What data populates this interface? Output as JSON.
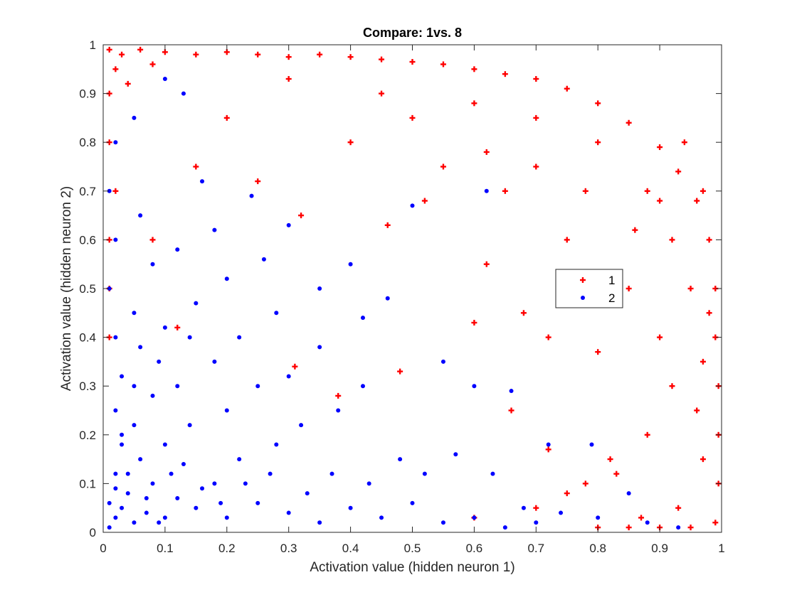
{
  "chart_data": {
    "type": "scatter",
    "title": "Compare: 1vs. 8",
    "xlabel": "Activation value (hidden neuron 1)",
    "ylabel": "Activation value (hidden neuron 2)",
    "xlim": [
      0,
      1
    ],
    "ylim": [
      0,
      1
    ],
    "xticks": [
      "0",
      "0.1",
      "0.2",
      "0.3",
      "0.4",
      "0.5",
      "0.6",
      "0.7",
      "0.8",
      "0.9",
      "1"
    ],
    "yticks": [
      "0",
      "0.1",
      "0.2",
      "0.3",
      "0.4",
      "0.5",
      "0.6",
      "0.7",
      "0.8",
      "0.9",
      "1"
    ],
    "grid": false,
    "legend_position": "center-right",
    "series": [
      {
        "name": "1",
        "marker": "plus",
        "color": "#ff0000",
        "points": [
          [
            0.01,
            0.99
          ],
          [
            0.03,
            0.98
          ],
          [
            0.06,
            0.99
          ],
          [
            0.1,
            0.985
          ],
          [
            0.15,
            0.98
          ],
          [
            0.2,
            0.985
          ],
          [
            0.25,
            0.98
          ],
          [
            0.3,
            0.975
          ],
          [
            0.35,
            0.98
          ],
          [
            0.4,
            0.975
          ],
          [
            0.45,
            0.97
          ],
          [
            0.5,
            0.965
          ],
          [
            0.55,
            0.96
          ],
          [
            0.6,
            0.95
          ],
          [
            0.65,
            0.94
          ],
          [
            0.7,
            0.93
          ],
          [
            0.75,
            0.91
          ],
          [
            0.8,
            0.88
          ],
          [
            0.85,
            0.84
          ],
          [
            0.9,
            0.79
          ],
          [
            0.93,
            0.74
          ],
          [
            0.96,
            0.68
          ],
          [
            0.98,
            0.6
          ],
          [
            0.99,
            0.5
          ],
          [
            0.99,
            0.4
          ],
          [
            0.995,
            0.3
          ],
          [
            0.995,
            0.2
          ],
          [
            0.995,
            0.1
          ],
          [
            0.99,
            0.02
          ],
          [
            0.95,
            0.01
          ],
          [
            0.9,
            0.01
          ],
          [
            0.85,
            0.01
          ],
          [
            0.8,
            0.01
          ],
          [
            0.01,
            0.9
          ],
          [
            0.01,
            0.8
          ],
          [
            0.02,
            0.7
          ],
          [
            0.01,
            0.6
          ],
          [
            0.01,
            0.5
          ],
          [
            0.01,
            0.4
          ],
          [
            0.02,
            0.95
          ],
          [
            0.04,
            0.92
          ],
          [
            0.08,
            0.96
          ],
          [
            0.3,
            0.93
          ],
          [
            0.45,
            0.9
          ],
          [
            0.6,
            0.88
          ],
          [
            0.7,
            0.85
          ],
          [
            0.8,
            0.8
          ],
          [
            0.88,
            0.7
          ],
          [
            0.92,
            0.6
          ],
          [
            0.95,
            0.5
          ],
          [
            0.5,
            0.85
          ],
          [
            0.4,
            0.8
          ],
          [
            0.55,
            0.75
          ],
          [
            0.65,
            0.7
          ],
          [
            0.75,
            0.6
          ],
          [
            0.85,
            0.5
          ],
          [
            0.9,
            0.4
          ],
          [
            0.92,
            0.3
          ],
          [
            0.88,
            0.2
          ],
          [
            0.82,
            0.15
          ],
          [
            0.78,
            0.1
          ],
          [
            0.7,
            0.05
          ],
          [
            0.6,
            0.03
          ],
          [
            0.12,
            0.42
          ],
          [
            0.08,
            0.6
          ],
          [
            0.15,
            0.75
          ],
          [
            0.2,
            0.85
          ],
          [
            0.25,
            0.72
          ],
          [
            0.32,
            0.65
          ],
          [
            0.46,
            0.63
          ],
          [
            0.52,
            0.68
          ],
          [
            0.62,
            0.55
          ],
          [
            0.68,
            0.45
          ],
          [
            0.72,
            0.4
          ],
          [
            0.8,
            0.37
          ],
          [
            0.6,
            0.43
          ],
          [
            0.48,
            0.33
          ],
          [
            0.38,
            0.28
          ],
          [
            0.31,
            0.34
          ],
          [
            0.62,
            0.78
          ],
          [
            0.7,
            0.75
          ],
          [
            0.78,
            0.7
          ],
          [
            0.86,
            0.62
          ],
          [
            0.9,
            0.68
          ],
          [
            0.94,
            0.8
          ],
          [
            0.97,
            0.7
          ],
          [
            0.98,
            0.45
          ],
          [
            0.97,
            0.35
          ],
          [
            0.96,
            0.25
          ],
          [
            0.97,
            0.15
          ],
          [
            0.93,
            0.05
          ],
          [
            0.87,
            0.03
          ],
          [
            0.75,
            0.08
          ],
          [
            0.83,
            0.12
          ],
          [
            0.72,
            0.17
          ],
          [
            0.66,
            0.25
          ]
        ]
      },
      {
        "name": "2",
        "marker": "dot",
        "color": "#0000ff",
        "points": [
          [
            0.01,
            0.01
          ],
          [
            0.02,
            0.03
          ],
          [
            0.03,
            0.05
          ],
          [
            0.05,
            0.02
          ],
          [
            0.04,
            0.08
          ],
          [
            0.07,
            0.04
          ],
          [
            0.02,
            0.12
          ],
          [
            0.08,
            0.1
          ],
          [
            0.1,
            0.03
          ],
          [
            0.12,
            0.07
          ],
          [
            0.03,
            0.18
          ],
          [
            0.06,
            0.15
          ],
          [
            0.15,
            0.05
          ],
          [
            0.18,
            0.1
          ],
          [
            0.02,
            0.25
          ],
          [
            0.05,
            0.22
          ],
          [
            0.1,
            0.18
          ],
          [
            0.2,
            0.03
          ],
          [
            0.25,
            0.06
          ],
          [
            0.03,
            0.32
          ],
          [
            0.08,
            0.28
          ],
          [
            0.14,
            0.22
          ],
          [
            0.22,
            0.15
          ],
          [
            0.3,
            0.04
          ],
          [
            0.35,
            0.02
          ],
          [
            0.02,
            0.4
          ],
          [
            0.06,
            0.38
          ],
          [
            0.12,
            0.3
          ],
          [
            0.2,
            0.25
          ],
          [
            0.28,
            0.18
          ],
          [
            0.4,
            0.05
          ],
          [
            0.45,
            0.03
          ],
          [
            0.01,
            0.5
          ],
          [
            0.05,
            0.45
          ],
          [
            0.1,
            0.42
          ],
          [
            0.18,
            0.35
          ],
          [
            0.25,
            0.3
          ],
          [
            0.32,
            0.22
          ],
          [
            0.5,
            0.06
          ],
          [
            0.55,
            0.02
          ],
          [
            0.02,
            0.6
          ],
          [
            0.08,
            0.55
          ],
          [
            0.15,
            0.47
          ],
          [
            0.22,
            0.4
          ],
          [
            0.3,
            0.32
          ],
          [
            0.38,
            0.25
          ],
          [
            0.6,
            0.03
          ],
          [
            0.65,
            0.01
          ],
          [
            0.01,
            0.7
          ],
          [
            0.06,
            0.65
          ],
          [
            0.12,
            0.58
          ],
          [
            0.2,
            0.52
          ],
          [
            0.28,
            0.45
          ],
          [
            0.35,
            0.38
          ],
          [
            0.42,
            0.3
          ],
          [
            0.7,
            0.02
          ],
          [
            0.02,
            0.8
          ],
          [
            0.05,
            0.85
          ],
          [
            0.1,
            0.93
          ],
          [
            0.13,
            0.9
          ],
          [
            0.16,
            0.72
          ],
          [
            0.24,
            0.69
          ],
          [
            0.3,
            0.63
          ],
          [
            0.4,
            0.55
          ],
          [
            0.46,
            0.48
          ],
          [
            0.55,
            0.35
          ],
          [
            0.6,
            0.3
          ],
          [
            0.66,
            0.29
          ],
          [
            0.72,
            0.18
          ],
          [
            0.79,
            0.18
          ],
          [
            0.85,
            0.08
          ],
          [
            0.88,
            0.02
          ],
          [
            0.93,
            0.01
          ],
          [
            0.62,
            0.7
          ],
          [
            0.5,
            0.67
          ],
          [
            0.42,
            0.44
          ],
          [
            0.35,
            0.5
          ],
          [
            0.26,
            0.56
          ],
          [
            0.18,
            0.62
          ],
          [
            0.03,
            0.2
          ],
          [
            0.01,
            0.06
          ],
          [
            0.02,
            0.09
          ],
          [
            0.04,
            0.12
          ],
          [
            0.07,
            0.07
          ],
          [
            0.09,
            0.02
          ],
          [
            0.11,
            0.12
          ],
          [
            0.13,
            0.14
          ],
          [
            0.16,
            0.09
          ],
          [
            0.19,
            0.06
          ],
          [
            0.23,
            0.1
          ],
          [
            0.27,
            0.12
          ],
          [
            0.33,
            0.08
          ],
          [
            0.37,
            0.12
          ],
          [
            0.43,
            0.1
          ],
          [
            0.48,
            0.15
          ],
          [
            0.52,
            0.12
          ],
          [
            0.57,
            0.16
          ],
          [
            0.63,
            0.12
          ],
          [
            0.68,
            0.05
          ],
          [
            0.74,
            0.04
          ],
          [
            0.8,
            0.03
          ],
          [
            0.05,
            0.3
          ],
          [
            0.09,
            0.35
          ],
          [
            0.14,
            0.4
          ]
        ]
      }
    ]
  }
}
